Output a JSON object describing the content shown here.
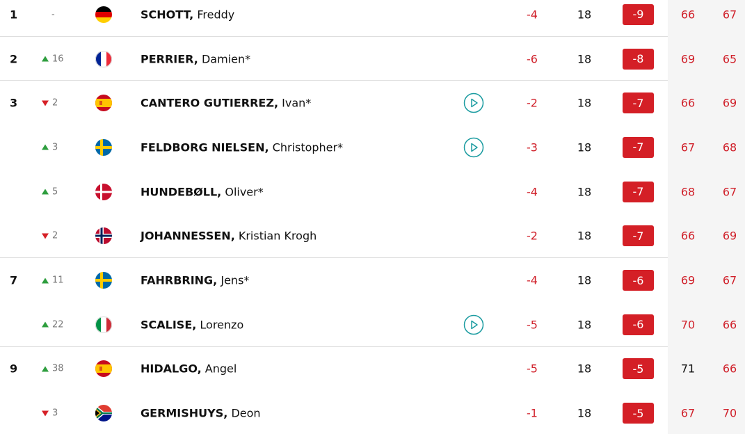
{
  "rows": [
    {
      "position": "1",
      "movement": "-",
      "surname": "SCHOTT,",
      "first_name": "Freddy",
      "today": "-4",
      "thru": "18",
      "total": "-9",
      "r1": "66",
      "r2": "67"
    },
    {
      "position": "2",
      "movement": "16",
      "surname": "PERRIER,",
      "first_name": "Damien*",
      "today": "-6",
      "thru": "18",
      "total": "-8",
      "r1": "69",
      "r2": "65"
    },
    {
      "position": "3",
      "movement": "2",
      "surname": "CANTERO GUTIERREZ,",
      "first_name": "Ivan*",
      "today": "-2",
      "thru": "18",
      "total": "-7",
      "r1": "66",
      "r2": "69"
    },
    {
      "movement": "3",
      "surname": "FELDBORG NIELSEN,",
      "first_name": "Christopher*",
      "today": "-3",
      "thru": "18",
      "total": "-7",
      "r1": "67",
      "r2": "68"
    },
    {
      "movement": "5",
      "surname": "HUNDEBØLL,",
      "first_name": "Oliver*",
      "today": "-4",
      "thru": "18",
      "total": "-7",
      "r1": "68",
      "r2": "67"
    },
    {
      "movement": "2",
      "surname": "JOHANNESSEN,",
      "first_name": "Kristian Krogh",
      "today": "-2",
      "thru": "18",
      "total": "-7",
      "r1": "66",
      "r2": "69"
    },
    {
      "position": "7",
      "movement": "11",
      "surname": "FAHRBRING,",
      "first_name": "Jens*",
      "today": "-4",
      "thru": "18",
      "total": "-6",
      "r1": "69",
      "r2": "67"
    },
    {
      "movement": "22",
      "surname": "SCALISE,",
      "first_name": "Lorenzo",
      "today": "-5",
      "thru": "18",
      "total": "-6",
      "r1": "70",
      "r2": "66"
    },
    {
      "position": "9",
      "movement": "38",
      "surname": "HIDALGO,",
      "first_name": "Angel",
      "today": "-5",
      "thru": "18",
      "total": "-5",
      "r1": "71",
      "r2": "66"
    },
    {
      "movement": "3",
      "surname": "GERMISHUYS,",
      "first_name": "Deon",
      "today": "-1",
      "thru": "18",
      "total": "-5",
      "r1": "67",
      "r2": "70"
    }
  ]
}
